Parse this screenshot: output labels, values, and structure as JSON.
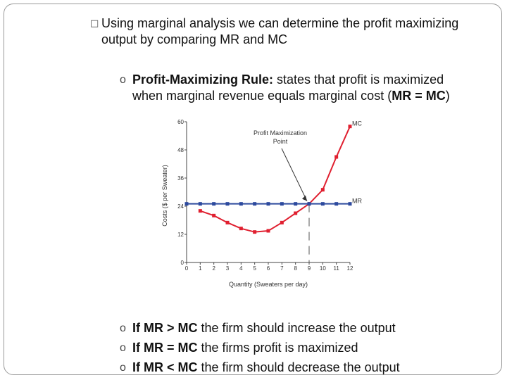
{
  "slide": {
    "bullet_glyph": "□",
    "intro": "Using marginal analysis we can determine the profit maximizing output by comparing MR and MC",
    "rule_bold": "Profit-Maximizing Rule:",
    "rule_text": " states that profit is maximized when marginal revenue equals marginal cost (",
    "rule_eq": "MR = MC",
    "rule_end": ")",
    "sub_glyph": "o",
    "cond1_bold": "If MR > MC",
    "cond1_text": " the firm should increase the output",
    "cond2_bold": "If MR = MC",
    "cond2_text": " the firms profit is maximized",
    "cond3_bold": "If MR < MC",
    "cond3_text": " the firm should decrease the output"
  },
  "chart_data": {
    "type": "line",
    "xlabel": "Quantity (Sweaters per day)",
    "ylabel": "Costs ($ per Sweater)",
    "xlim": [
      0,
      12
    ],
    "ylim": [
      0,
      60
    ],
    "x_ticks": [
      0,
      1,
      2,
      3,
      4,
      5,
      6,
      7,
      8,
      9,
      10,
      11,
      12
    ],
    "y_ticks": [
      0,
      12,
      24,
      36,
      48,
      60
    ],
    "annotation": "Profit Maximization Point",
    "annotation_point": [
      9,
      25
    ],
    "series": [
      {
        "name": "MC",
        "color": "#e02030",
        "x": [
          1,
          2,
          3,
          4,
          5,
          6,
          7,
          8,
          9,
          10,
          11,
          12
        ],
        "y": [
          22,
          20,
          17,
          14.5,
          13,
          13.5,
          17,
          21,
          25,
          31,
          45,
          58
        ]
      },
      {
        "name": "MR",
        "color": "#2d4a9e",
        "x": [
          0,
          1,
          2,
          3,
          4,
          5,
          6,
          7,
          8,
          9,
          10,
          11,
          12
        ],
        "y": [
          25,
          25,
          25,
          25,
          25,
          25,
          25,
          25,
          25,
          25,
          25,
          25,
          25
        ]
      }
    ]
  }
}
